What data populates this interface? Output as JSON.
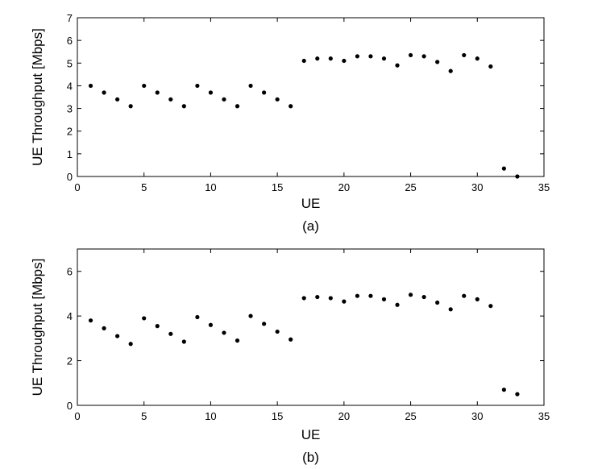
{
  "chart_data": [
    {
      "type": "scatter",
      "caption": "(a)",
      "xlabel": "UE",
      "ylabel": "UE Throughput [Mbps]",
      "xlim": [
        0,
        35
      ],
      "ylim": [
        0,
        7
      ],
      "xticks": [
        0,
        5,
        10,
        15,
        20,
        25,
        30,
        35
      ],
      "yticks": [
        0,
        1,
        2,
        3,
        4,
        5,
        6,
        7
      ],
      "grid": false,
      "marker_color": "#000000",
      "x": [
        1,
        2,
        3,
        4,
        5,
        6,
        7,
        8,
        9,
        10,
        11,
        12,
        13,
        14,
        15,
        16,
        17,
        18,
        19,
        20,
        21,
        22,
        23,
        24,
        25,
        26,
        27,
        28,
        29,
        30,
        31,
        32,
        33
      ],
      "y": [
        4.0,
        3.7,
        3.4,
        3.1,
        4.0,
        3.7,
        3.4,
        3.1,
        4.0,
        3.7,
        3.4,
        3.1,
        4.0,
        3.7,
        3.4,
        3.1,
        5.1,
        5.2,
        5.2,
        5.1,
        5.3,
        5.3,
        5.2,
        4.9,
        5.35,
        5.3,
        5.05,
        4.65,
        5.35,
        5.2,
        4.85,
        0.35,
        0.0
      ]
    },
    {
      "type": "scatter",
      "caption": "(b)",
      "xlabel": "UE",
      "ylabel": "UE Throughput [Mbps]",
      "xlim": [
        0,
        35
      ],
      "ylim": [
        0,
        7
      ],
      "xticks": [
        0,
        5,
        10,
        15,
        20,
        25,
        30,
        35
      ],
      "yticks": [
        0,
        2,
        4,
        6
      ],
      "grid": false,
      "marker_color": "#000000",
      "x": [
        1,
        2,
        3,
        4,
        5,
        6,
        7,
        8,
        9,
        10,
        11,
        12,
        13,
        14,
        15,
        16,
        17,
        18,
        19,
        20,
        21,
        22,
        23,
        24,
        25,
        26,
        27,
        28,
        29,
        30,
        31,
        32,
        33
      ],
      "y": [
        3.8,
        3.45,
        3.1,
        2.75,
        3.9,
        3.55,
        3.2,
        2.85,
        3.95,
        3.6,
        3.25,
        2.9,
        4.0,
        3.65,
        3.3,
        2.95,
        4.8,
        4.85,
        4.8,
        4.65,
        4.9,
        4.9,
        4.75,
        4.5,
        4.95,
        4.85,
        4.6,
        4.3,
        4.9,
        4.75,
        4.45,
        0.7,
        0.5
      ]
    }
  ]
}
